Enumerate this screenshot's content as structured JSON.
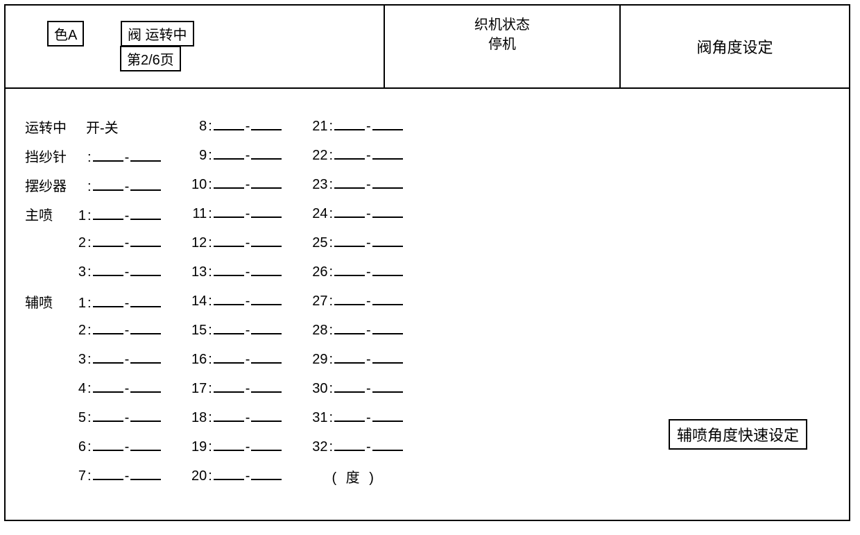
{
  "header": {
    "color_label": "色A",
    "valve_status": "阀 运转中",
    "page_indicator": "第2/6页",
    "loom_status_label": "织机状态",
    "loom_status_value": "停机",
    "screen_title": "阀角度设定"
  },
  "content": {
    "running_label": "运转中",
    "on_off_label": "开-关",
    "col1_rows": [
      {
        "label": "挡纱针",
        "prefix": ""
      },
      {
        "label": "摆纱器",
        "prefix": ""
      },
      {
        "label": "主喷",
        "prefix": "1"
      },
      {
        "label": "",
        "prefix": "2"
      },
      {
        "label": "",
        "prefix": "3"
      },
      {
        "label": "辅喷",
        "prefix": "1"
      },
      {
        "label": "",
        "prefix": "2"
      },
      {
        "label": "",
        "prefix": "3"
      },
      {
        "label": "",
        "prefix": "4"
      },
      {
        "label": "",
        "prefix": "5"
      },
      {
        "label": "",
        "prefix": "6"
      },
      {
        "label": "",
        "prefix": "7"
      }
    ],
    "col2_numbers": [
      "8",
      "9",
      "10",
      "11",
      "12",
      "13",
      "14",
      "15",
      "16",
      "17",
      "18",
      "19",
      "20"
    ],
    "col3_numbers": [
      "21",
      "22",
      "23",
      "24",
      "25",
      "26",
      "27",
      "28",
      "29",
      "30",
      "31",
      "32"
    ],
    "unit_label": "( 度 )",
    "quick_set_label": "辅喷角度快速设定"
  }
}
